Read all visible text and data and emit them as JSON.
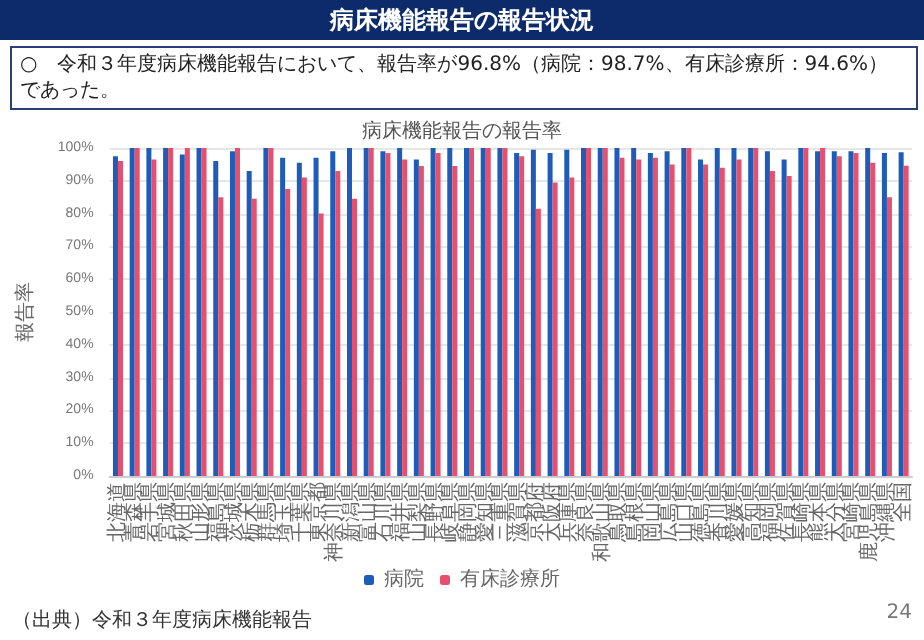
{
  "chart_data": {
    "type": "bar",
    "title": "病床機能報告の報告率",
    "subtitle": "病床機能報告の報告状況",
    "annotations": [
      "○　令和３年度病床機能報告において、報告率が96.8%（病院：98.7%、有床診療所：94.6%）であった。",
      "（出典）令和３年度病床機能報告",
      "24"
    ],
    "ylabel": "報告率",
    "categories": [
      "北海道",
      "青森県",
      "岩手県",
      "宮城県",
      "秋田県",
      "山形県",
      "福島県",
      "茨城県",
      "栃木県",
      "群馬県",
      "埼玉県",
      "千葉県",
      "東京都",
      "神奈川県",
      "新潟県",
      "富山県",
      "石川県",
      "福井県",
      "山梨県",
      "長野県",
      "岐阜県",
      "静岡県",
      "愛知県",
      "三重県",
      "滋賀県",
      "京都府",
      "大阪府",
      "兵庫県",
      "奈良県",
      "和歌山県",
      "鳥取県",
      "島根県",
      "岡山県",
      "広島県",
      "山口県",
      "徳島県",
      "香川県",
      "愛媛県",
      "高知県",
      "福岡県",
      "佐賀県",
      "長崎県",
      "熊本県",
      "大分県",
      "宮崎県",
      "鹿児島県",
      "沖縄県",
      "全国"
    ],
    "series": [
      {
        "name": "病院",
        "color": "#1f5cb8",
        "values": [
          97.5,
          100,
          100,
          100,
          98,
          100,
          96,
          99,
          93,
          100,
          97,
          95.5,
          97,
          99,
          100,
          100,
          99,
          100,
          96.5,
          100,
          100,
          100,
          100,
          100,
          98.5,
          99.5,
          98.5,
          99.5,
          100,
          100,
          100,
          100,
          98.5,
          99,
          100,
          96.5,
          100,
          100,
          100,
          99,
          96.5,
          100,
          99,
          99,
          99,
          100,
          98.5,
          98.7
        ]
      },
      {
        "name": "有床診療所",
        "color": "#e5506e",
        "values": [
          96,
          100,
          96.5,
          100,
          100,
          100,
          85,
          100,
          84.5,
          100,
          87.5,
          91,
          80,
          93,
          84.5,
          100,
          98.5,
          96.5,
          94.5,
          98.5,
          94.5,
          100,
          100,
          100,
          97.5,
          81.5,
          89.5,
          91,
          100,
          100,
          97,
          96.5,
          97,
          95,
          100,
          95,
          94,
          96.5,
          100,
          93,
          91.5,
          100,
          100,
          97.5,
          98.5,
          95.5,
          85,
          94.6
        ]
      }
    ],
    "ylim": [
      0,
      100
    ],
    "yticks": [
      {
        "value": 0,
        "label": "0%"
      },
      {
        "value": 10,
        "label": "10%"
      },
      {
        "value": 20,
        "label": "20%"
      },
      {
        "value": 30,
        "label": "30%"
      },
      {
        "value": 40,
        "label": "40%"
      },
      {
        "value": 50,
        "label": "50%"
      },
      {
        "value": 60,
        "label": "60%"
      },
      {
        "value": 70,
        "label": "70%"
      },
      {
        "value": 80,
        "label": "80%"
      },
      {
        "value": 90,
        "label": "90%"
      },
      {
        "value": 100,
        "label": "100%"
      }
    ],
    "grid": "y",
    "legend": "bottom"
  }
}
